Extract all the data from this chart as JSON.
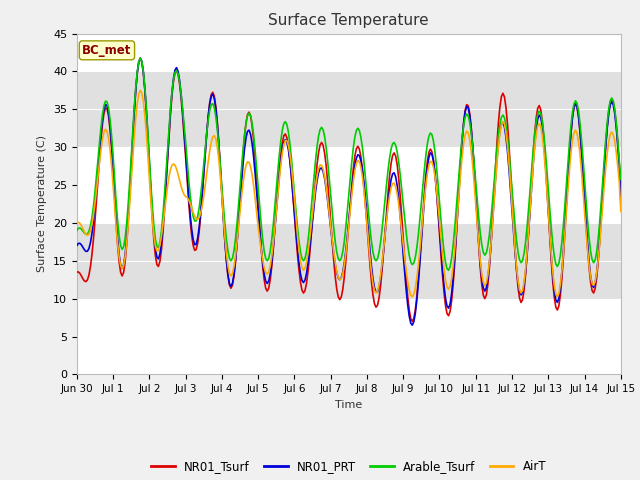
{
  "title": "Surface Temperature",
  "ylabel": "Surface Temperature (C)",
  "xlabel": "Time",
  "annotation": "BC_met",
  "ylim": [
    0,
    45
  ],
  "fig_facecolor": "#f0f0f0",
  "plot_facecolor": "#e8e8e8",
  "series": {
    "NR01_Tsurf": {
      "color": "#dd0000",
      "lw": 1.2
    },
    "NR01_PRT": {
      "color": "#0000dd",
      "lw": 1.2
    },
    "Arable_Tsurf": {
      "color": "#00cc00",
      "lw": 1.2
    },
    "AirT": {
      "color": "#ffaa00",
      "lw": 1.2
    }
  },
  "xtick_labels": [
    "Jun 30",
    "Jul 1",
    "Jul 2",
    "Jul 3",
    "Jul 4",
    "Jul 5",
    "Jul 6",
    "Jul 7",
    "Jul 8",
    "Jul 9",
    "Jul 10",
    "Jul 11",
    "Jul 12",
    "Jul 13",
    "Jul 14",
    "Jul 15"
  ],
  "xtick_positions": [
    0,
    1,
    2,
    3,
    4,
    5,
    6,
    7,
    8,
    9,
    10,
    11,
    12,
    13,
    14,
    15
  ],
  "yticks": [
    0,
    5,
    10,
    15,
    20,
    25,
    30,
    35,
    40,
    45
  ],
  "band_colors": [
    "#ffffff",
    "#e0e0e0"
  ],
  "band_ranges": [
    [
      40,
      45
    ],
    [
      30,
      40
    ],
    [
      20,
      30
    ],
    [
      10,
      20
    ],
    [
      0,
      10
    ]
  ]
}
